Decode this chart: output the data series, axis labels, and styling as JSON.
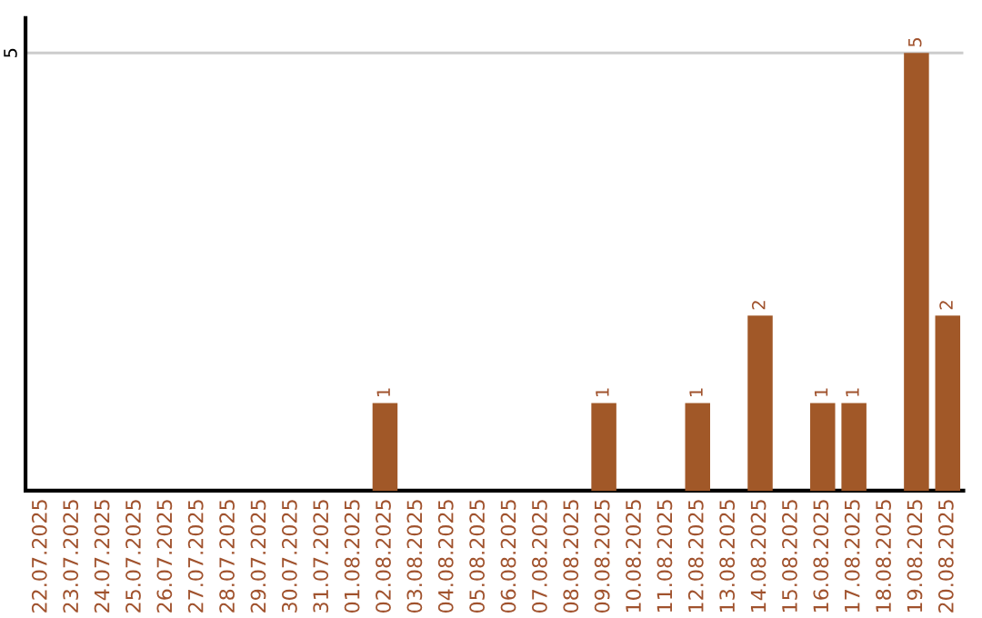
{
  "chart_data": {
    "type": "bar",
    "categories": [
      "22.07.2025",
      "23.07.2025",
      "24.07.2025",
      "25.07.2025",
      "26.07.2025",
      "27.07.2025",
      "28.07.2025",
      "29.07.2025",
      "30.07.2025",
      "31.07.2025",
      "01.08.2025",
      "02.08.2025",
      "03.08.2025",
      "04.08.2025",
      "05.08.2025",
      "06.08.2025",
      "07.08.2025",
      "08.08.2025",
      "09.08.2025",
      "10.08.2025",
      "11.08.2025",
      "12.08.2025",
      "13.08.2025",
      "14.08.2025",
      "15.08.2025",
      "16.08.2025",
      "17.08.2025",
      "18.08.2025",
      "19.08.2025",
      "20.08.2025"
    ],
    "values": [
      0,
      0,
      0,
      0,
      0,
      0,
      0,
      0,
      0,
      0,
      0,
      1,
      0,
      0,
      0,
      0,
      0,
      0,
      1,
      0,
      0,
      1,
      0,
      2,
      0,
      1,
      1,
      0,
      5,
      2
    ],
    "value_labels": [
      null,
      null,
      null,
      null,
      null,
      null,
      null,
      null,
      null,
      null,
      null,
      "1",
      null,
      null,
      null,
      null,
      null,
      null,
      "1",
      null,
      null,
      "1",
      null,
      "2",
      null,
      "1",
      "1",
      null,
      "5",
      "2"
    ],
    "color": "#a15828",
    "ylim": [
      0,
      5.4
    ],
    "yticks": [
      5
    ],
    "grid": "y",
    "legend": false
  }
}
